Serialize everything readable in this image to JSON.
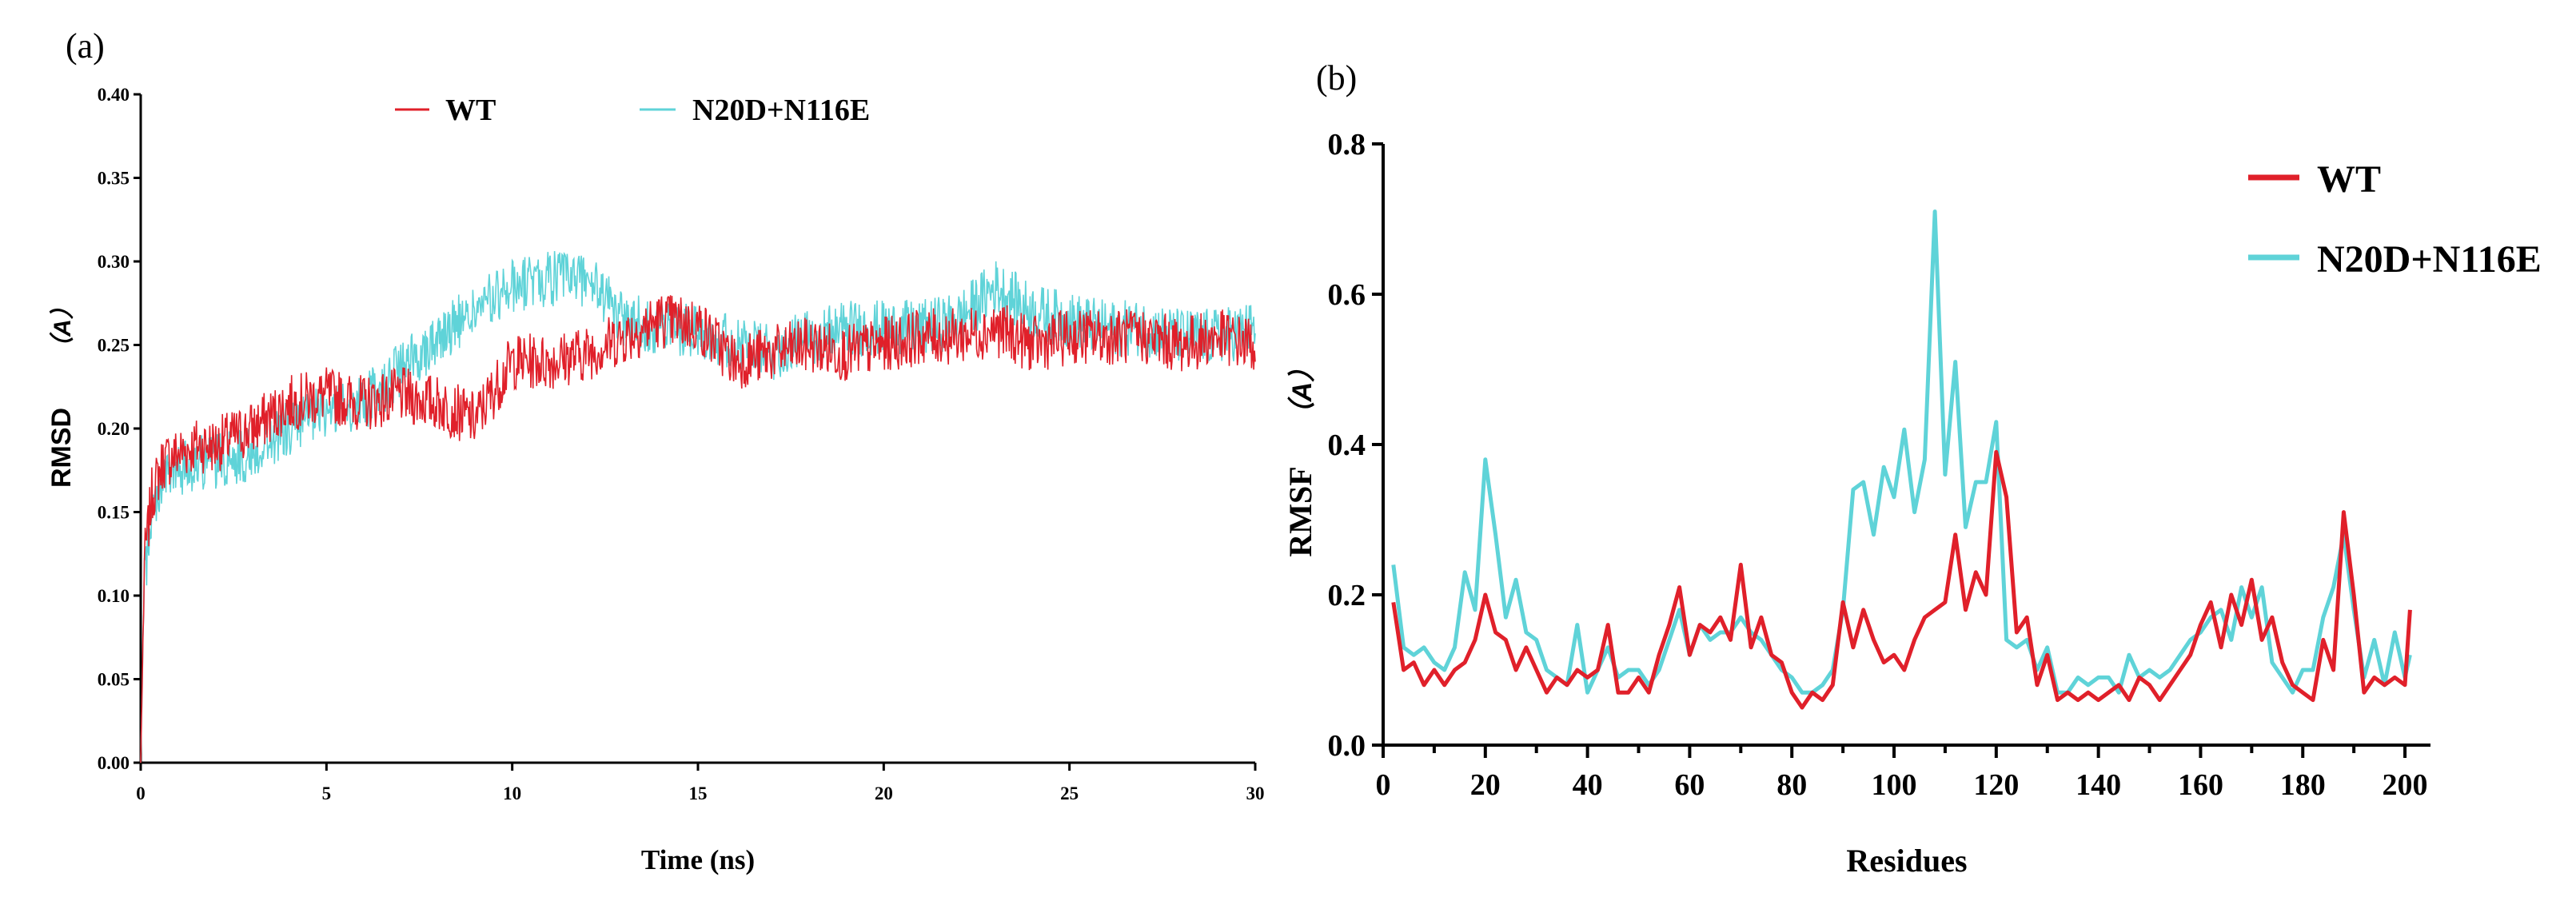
{
  "chart_data": [
    {
      "panel": "(a)",
      "type": "line",
      "title": "",
      "xlabel": "Time (ns)",
      "ylabel": "RMSD",
      "ylabel_unit": "（A）",
      "xlim": [
        0,
        30
      ],
      "ylim": [
        0,
        0.4
      ],
      "x_ticks": [
        0,
        5,
        10,
        15,
        20,
        25,
        30
      ],
      "y_ticks": [
        0,
        0.05,
        0.1,
        0.15,
        0.2,
        0.25,
        0.3,
        0.35,
        0.4
      ],
      "y_tick_labels": [
        "0.00",
        "0.05",
        "0.10",
        "0.15",
        "0.20",
        "0.25",
        "0.30",
        "0.35",
        "0.40"
      ],
      "legend_position": "top-center",
      "series": [
        {
          "name": "WT",
          "color": "#e0202a",
          "x": [
            0,
            0.1,
            0.3,
            0.6,
            1,
            1.5,
            2,
            3,
            4,
            5,
            6,
            7,
            8,
            9,
            10,
            11,
            12,
            13,
            14,
            15,
            16,
            17,
            18,
            19,
            20,
            21,
            22,
            23,
            24,
            25,
            26,
            27,
            28,
            29,
            30
          ],
          "values": [
            0.0,
            0.12,
            0.16,
            0.18,
            0.185,
            0.19,
            0.19,
            0.2,
            0.215,
            0.22,
            0.215,
            0.22,
            0.215,
            0.205,
            0.24,
            0.24,
            0.245,
            0.255,
            0.265,
            0.262,
            0.24,
            0.245,
            0.25,
            0.245,
            0.25,
            0.255,
            0.255,
            0.26,
            0.25,
            0.255,
            0.255,
            0.255,
            0.25,
            0.255,
            0.25
          ]
        },
        {
          "name": "N20D+N116E",
          "color": "#5fd3d8",
          "x": [
            0,
            0.1,
            0.3,
            0.6,
            1,
            1.5,
            2,
            3,
            4,
            5,
            6,
            7,
            8,
            9,
            10,
            11,
            12,
            13,
            14,
            15,
            16,
            17,
            18,
            19,
            20,
            21,
            22,
            23,
            24,
            25,
            26,
            27,
            28,
            29,
            30
          ],
          "values": [
            0.0,
            0.11,
            0.15,
            0.17,
            0.175,
            0.18,
            0.18,
            0.185,
            0.2,
            0.21,
            0.215,
            0.235,
            0.255,
            0.27,
            0.285,
            0.29,
            0.29,
            0.265,
            0.26,
            0.26,
            0.25,
            0.245,
            0.255,
            0.26,
            0.26,
            0.26,
            0.265,
            0.285,
            0.27,
            0.265,
            0.26,
            0.26,
            0.255,
            0.255,
            0.26
          ]
        }
      ]
    },
    {
      "panel": "(b)",
      "type": "line",
      "title": "",
      "xlabel": "Residues",
      "ylabel": "RMSF",
      "ylabel_unit": "（A）",
      "xlim": [
        0,
        205
      ],
      "ylim": [
        0,
        0.8
      ],
      "x_ticks": [
        0,
        20,
        40,
        60,
        80,
        100,
        120,
        140,
        160,
        180,
        200
      ],
      "y_ticks": [
        0,
        0.2,
        0.4,
        0.6,
        0.8
      ],
      "y_tick_labels": [
        "0.0",
        "0.2",
        "0.4",
        "0.6",
        "0.8"
      ],
      "legend_position": "top-right",
      "series": [
        {
          "name": "WT",
          "color": "#e0202a",
          "x": [
            2,
            4,
            6,
            8,
            10,
            12,
            14,
            16,
            18,
            20,
            22,
            24,
            26,
            28,
            30,
            32,
            34,
            36,
            38,
            40,
            42,
            44,
            46,
            48,
            50,
            52,
            54,
            56,
            58,
            60,
            62,
            64,
            66,
            68,
            70,
            72,
            74,
            76,
            78,
            80,
            82,
            84,
            86,
            88,
            90,
            92,
            94,
            96,
            98,
            100,
            102,
            104,
            106,
            108,
            110,
            112,
            114,
            116,
            118,
            120,
            122,
            124,
            126,
            128,
            130,
            132,
            134,
            136,
            138,
            140,
            142,
            144,
            146,
            148,
            150,
            152,
            154,
            156,
            158,
            160,
            162,
            164,
            166,
            168,
            170,
            172,
            174,
            176,
            178,
            180,
            182,
            184,
            186,
            188,
            190,
            192,
            194,
            196,
            198,
            200,
            201
          ],
          "values": [
            0.19,
            0.1,
            0.11,
            0.08,
            0.1,
            0.08,
            0.1,
            0.11,
            0.14,
            0.2,
            0.15,
            0.14,
            0.1,
            0.13,
            0.1,
            0.07,
            0.09,
            0.08,
            0.1,
            0.09,
            0.1,
            0.16,
            0.07,
            0.07,
            0.09,
            0.07,
            0.12,
            0.16,
            0.21,
            0.12,
            0.16,
            0.15,
            0.17,
            0.14,
            0.24,
            0.13,
            0.17,
            0.12,
            0.11,
            0.07,
            0.05,
            0.07,
            0.06,
            0.08,
            0.19,
            0.13,
            0.18,
            0.14,
            0.11,
            0.12,
            0.1,
            0.14,
            0.17,
            0.18,
            0.19,
            0.28,
            0.18,
            0.23,
            0.2,
            0.39,
            0.33,
            0.15,
            0.17,
            0.08,
            0.12,
            0.06,
            0.07,
            0.06,
            0.07,
            0.06,
            0.07,
            0.08,
            0.06,
            0.09,
            0.08,
            0.06,
            0.08,
            0.1,
            0.12,
            0.16,
            0.19,
            0.13,
            0.2,
            0.16,
            0.22,
            0.14,
            0.17,
            0.11,
            0.08,
            0.07,
            0.06,
            0.14,
            0.1,
            0.31,
            0.2,
            0.07,
            0.09,
            0.08,
            0.09,
            0.08,
            0.18
          ]
        },
        {
          "name": "N20D+N116E",
          "color": "#5fd3d8",
          "x": [
            2,
            4,
            6,
            8,
            10,
            12,
            14,
            16,
            18,
            20,
            22,
            24,
            26,
            28,
            30,
            32,
            34,
            36,
            38,
            40,
            42,
            44,
            46,
            48,
            50,
            52,
            54,
            56,
            58,
            60,
            62,
            64,
            66,
            68,
            70,
            72,
            74,
            76,
            78,
            80,
            82,
            84,
            86,
            88,
            90,
            92,
            94,
            96,
            98,
            100,
            102,
            104,
            106,
            108,
            110,
            112,
            114,
            116,
            118,
            120,
            122,
            124,
            126,
            128,
            130,
            132,
            134,
            136,
            138,
            140,
            142,
            144,
            146,
            148,
            150,
            152,
            154,
            156,
            158,
            160,
            162,
            164,
            166,
            168,
            170,
            172,
            174,
            176,
            178,
            180,
            182,
            184,
            186,
            188,
            190,
            192,
            194,
            196,
            198,
            200,
            201
          ],
          "values": [
            0.24,
            0.13,
            0.12,
            0.13,
            0.11,
            0.1,
            0.13,
            0.23,
            0.18,
            0.38,
            0.28,
            0.17,
            0.22,
            0.15,
            0.14,
            0.1,
            0.09,
            0.08,
            0.16,
            0.07,
            0.1,
            0.13,
            0.09,
            0.1,
            0.1,
            0.08,
            0.1,
            0.14,
            0.18,
            0.12,
            0.16,
            0.14,
            0.15,
            0.15,
            0.17,
            0.15,
            0.14,
            0.12,
            0.1,
            0.09,
            0.07,
            0.07,
            0.08,
            0.1,
            0.18,
            0.34,
            0.35,
            0.28,
            0.37,
            0.33,
            0.42,
            0.31,
            0.38,
            0.71,
            0.36,
            0.51,
            0.29,
            0.35,
            0.35,
            0.43,
            0.14,
            0.13,
            0.14,
            0.1,
            0.13,
            0.07,
            0.07,
            0.09,
            0.08,
            0.09,
            0.09,
            0.07,
            0.12,
            0.09,
            0.1,
            0.09,
            0.1,
            0.12,
            0.14,
            0.15,
            0.17,
            0.18,
            0.14,
            0.21,
            0.17,
            0.21,
            0.11,
            0.09,
            0.07,
            0.1,
            0.1,
            0.17,
            0.21,
            0.28,
            0.18,
            0.09,
            0.14,
            0.08,
            0.15,
            0.09,
            0.12
          ]
        }
      ]
    }
  ]
}
